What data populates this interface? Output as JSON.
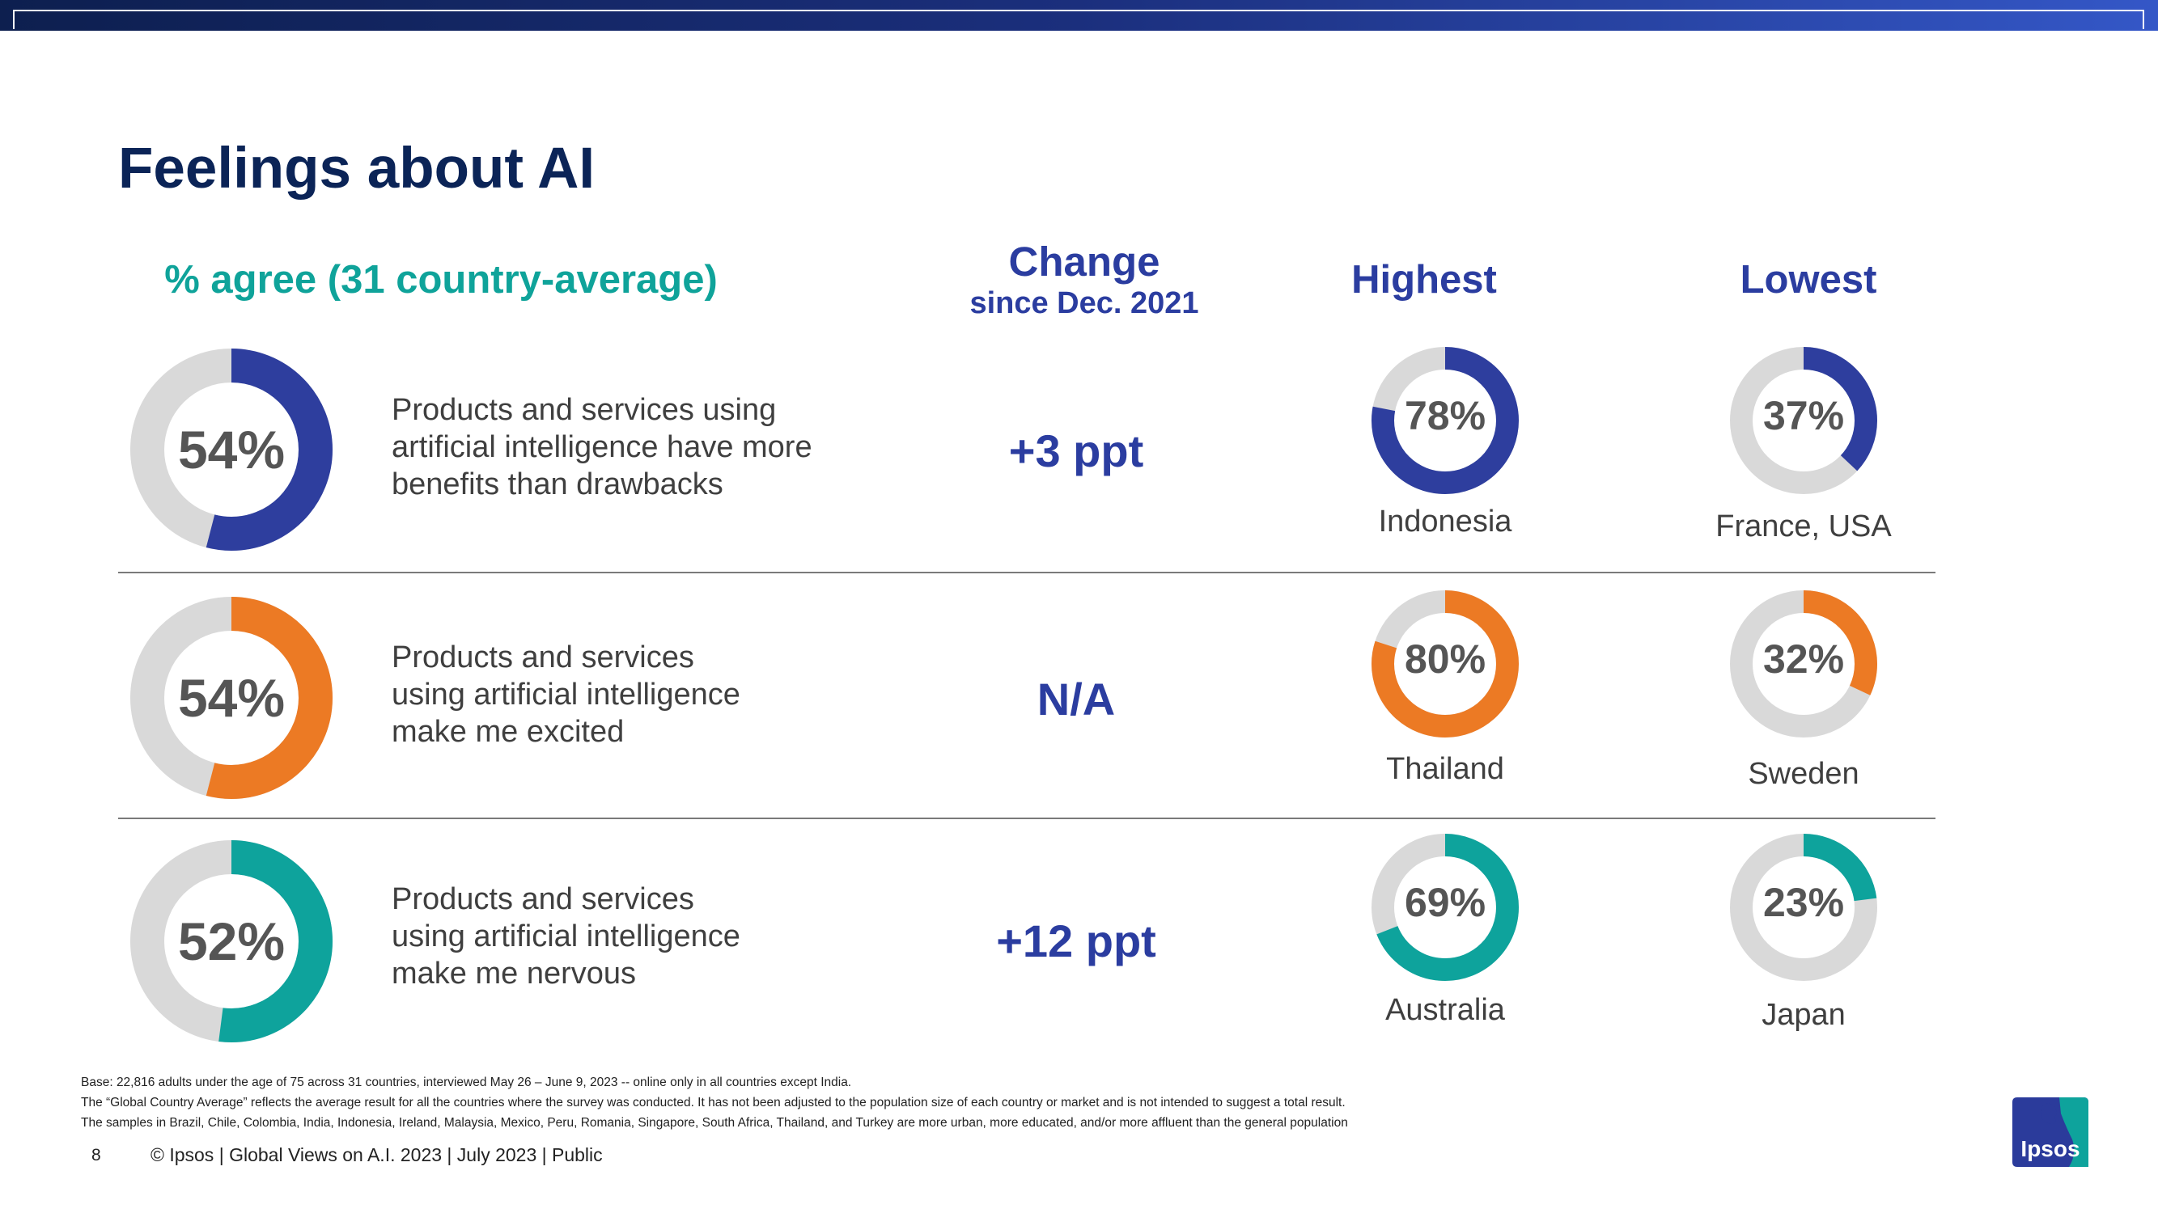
{
  "title": "Feelings about AI",
  "headers": {
    "agree": "% agree (31 country-average)",
    "change": "Change",
    "change_sub": "since Dec. 2021",
    "highest": "Highest",
    "lowest": "Lowest"
  },
  "colors": {
    "blue": "#2e3e9e",
    "orange": "#ec7a24",
    "teal": "#0ea39c",
    "track": "#d9d9d9"
  },
  "chart_data": [
    {
      "type": "pie",
      "statement": "Products and services using artificial intelligence have more benefits than drawbacks",
      "statement_lines": [
        "Products and services using",
        "artificial intelligence have more",
        "benefits than drawbacks"
      ],
      "color": "blue",
      "average": 54,
      "average_label": "54%",
      "change": "+3 ppt",
      "highest": {
        "value": 78,
        "label": "78%",
        "country": "Indonesia"
      },
      "lowest": {
        "value": 37,
        "label": "37%",
        "country": "France, USA"
      }
    },
    {
      "type": "pie",
      "statement": "Products and services using artificial intelligence make me excited",
      "statement_lines": [
        "Products and services",
        "using artificial intelligence",
        "make me excited"
      ],
      "color": "orange",
      "average": 54,
      "average_label": "54%",
      "change": "N/A",
      "highest": {
        "value": 80,
        "label": "80%",
        "country": "Thailand"
      },
      "lowest": {
        "value": 32,
        "label": "32%",
        "country": "Sweden"
      }
    },
    {
      "type": "pie",
      "statement": "Products and services using artificial intelligence make me nervous",
      "statement_lines": [
        "Products and services",
        "using artificial intelligence",
        "make me nervous"
      ],
      "color": "teal",
      "average": 52,
      "average_label": "52%",
      "change": "+12 ppt",
      "highest": {
        "value": 69,
        "label": "69%",
        "country": "Australia"
      },
      "lowest": {
        "value": 23,
        "label": "23%",
        "country": "Japan"
      }
    }
  ],
  "footnotes": [
    "Base: 22,816 adults under the age of 75 across 31 countries, interviewed May 26 – June 9, 2023 -- online only in all countries except India.",
    "The “Global Country Average” reflects the average result for all the countries where the survey was conducted. It has not been adjusted to the population size of each country or market and is not intended to suggest a total result.",
    "The samples in Brazil, Chile, Colombia, India, Indonesia, Ireland, Malaysia, Mexico, Peru, Romania, Singapore, South Africa, Thailand, and Turkey are more urban, more educated, and/or more affluent than the general population"
  ],
  "page_number": "8",
  "copyright": "© Ipsos | Global Views on A.I. 2023 | July 2023 | Public",
  "logo": {
    "text": "Ipsos",
    "bg": "#2b3b9b",
    "accent": "#0ea39c"
  }
}
